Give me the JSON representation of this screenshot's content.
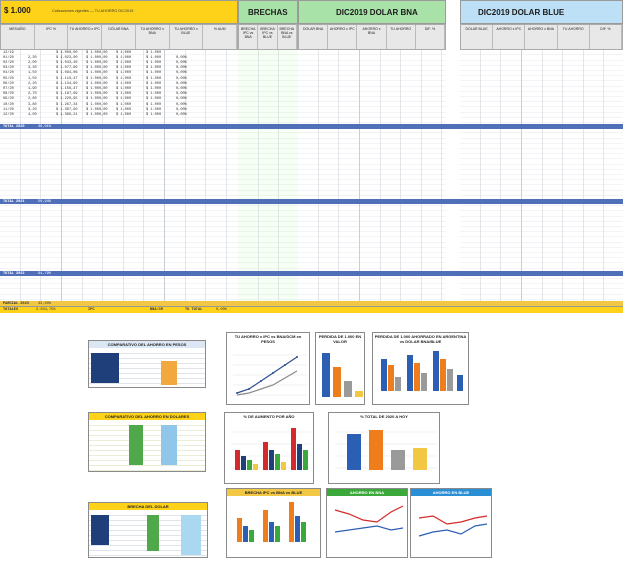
{
  "topbar": {
    "dollar_label": "$ 1.000",
    "note": "Cotizaciones vigentes — TU AHORRO DIC2019",
    "band_gold": "#ffd21a",
    "section_brechas": "BRECHAS",
    "section_dic_bna": "DIC2019 DOLAR BNA",
    "section_dic_blue": "DIC2019 DOLAR BLUE"
  },
  "headers": {
    "main": [
      "MES/AÑO",
      "IPC %",
      "TU AHORRO x IPC",
      "DÓLAR BNA",
      "TU AHORRO x BNA",
      "TU AHORRO x BLUE",
      "% AUM"
    ],
    "brechas": [
      "BRECHA IPC vs BNA",
      "BRECHA IPC vs BLUE",
      "BRECHA BNA vs BLUE"
    ],
    "bna": [
      "DOLAR BNA",
      "AHORRO x IPC",
      "AHORRO x BNA",
      "TU AHORRO",
      "DIF. %"
    ],
    "blue": [
      "DOLAR BLUE",
      "AHORRO x IPC",
      "AHORRO x BNA",
      "TU AHORRO",
      "DIF. %"
    ]
  },
  "rows": [
    {
      "a": "12/19",
      "b": "",
      "c": "$ 1.000,00",
      "d": "$ 1.000,00",
      "e": "$ 1.000",
      "f": "$ 1.000",
      "g": ""
    },
    {
      "a": "01/20",
      "b": "2,30",
      "c": "$ 1.023,00",
      "d": "$ 1.000,00",
      "e": "$ 1.000",
      "f": "$ 1.000",
      "g": "0,00%"
    },
    {
      "a": "02/20",
      "b": "2,00",
      "c": "$ 1.043,46",
      "d": "$ 1.000,00",
      "e": "$ 1.000",
      "f": "$ 1.000",
      "g": "0,00%"
    },
    {
      "a": "03/20",
      "b": "3,30",
      "c": "$ 1.077,89",
      "d": "$ 1.000,00",
      "e": "$ 1.000",
      "f": "$ 1.000",
      "g": "0,00%"
    },
    {
      "a": "04/20",
      "b": "1,50",
      "c": "$ 1.094,06",
      "d": "$ 1.000,00",
      "e": "$ 1.000",
      "f": "$ 1.000",
      "g": "0,00%"
    },
    {
      "a": "05/20",
      "b": "1,50",
      "c": "$ 1.110,47",
      "d": "$ 1.000,00",
      "e": "$ 1.000",
      "f": "$ 1.000",
      "g": "0,00%"
    },
    {
      "a": "06/20",
      "b": "2,20",
      "c": "$ 1.134,90",
      "d": "$ 1.000,00",
      "e": "$ 1.000",
      "f": "$ 1.000",
      "g": "0,00%"
    },
    {
      "a": "07/20",
      "b": "1,90",
      "c": "$ 1.156,47",
      "d": "$ 1.000,00",
      "e": "$ 1.000",
      "f": "$ 1.000",
      "g": "0,00%"
    },
    {
      "a": "08/20",
      "b": "2,70",
      "c": "$ 1.187,69",
      "d": "$ 1.000,00",
      "e": "$ 1.000",
      "f": "$ 1.000",
      "g": "0,00%"
    },
    {
      "a": "09/20",
      "b": "2,80",
      "c": "$ 1.220,95",
      "d": "$ 1.000,00",
      "e": "$ 1.000",
      "f": "$ 1.000",
      "g": "0,00%"
    },
    {
      "a": "10/20",
      "b": "3,80",
      "c": "$ 1.267,34",
      "d": "$ 1.000,00",
      "e": "$ 1.000",
      "f": "$ 1.000",
      "g": "0,00%"
    },
    {
      "a": "11/20",
      "b": "3,20",
      "c": "$ 1.307,90",
      "d": "$ 1.000,00",
      "e": "$ 1.000",
      "f": "$ 1.000",
      "g": "0,00%"
    },
    {
      "a": "12/20",
      "b": "4,00",
      "c": "$ 1.360,21",
      "d": "$ 1.000,00",
      "e": "$ 1.000",
      "f": "$ 1.000",
      "g": "0,00%"
    }
  ],
  "totals": [
    {
      "label": "TOTAL 2020",
      "value": "36,01%",
      "color": "#4f6fb8"
    },
    {
      "label": "TOTAL 2021",
      "value": "50,94%",
      "color": "#4f6fb8"
    },
    {
      "label": "TOTAL 2022",
      "value": "94,79%",
      "color": "#4f6fb8"
    },
    {
      "label": "PARCIAL 2023",
      "value": "33,50%",
      "color": "#4f6fb8"
    }
  ],
  "footer": {
    "total_label": "TOTALES",
    "total_ipc": "3.034,75%",
    "ipc_word": "IPC",
    "bna_word": "BNA/CM",
    "tu_total": "TU TOTAL",
    "tu_total_val": "0,00%"
  },
  "side_panel": {
    "title": "DIC2019 DOLAR BLUE",
    "extra_cols": [
      "DIF. %",
      "VS. IPC"
    ]
  },
  "charts": {
    "left_table_title": "COMPARATIVO DEL AHORRO EN PESOS",
    "ipc_vs_bna_title": "TU AHORRO x IPC vs BNA/DCM en PESOS",
    "pesos_title": "PERDIDA DE 1.000 EN VALOR",
    "gaps_title": "PERDIDA DE 1.000 AHORRADO EN ARGENTINA vs DOLAR BNA/BLUE",
    "mid_table_title": "COMPARATIVO DEL AHORRO EN DOLARES",
    "annual_title": "% DE AUMENTO POR AÑO",
    "cumulative_title": "% TOTAL DE 2020 A HOY",
    "bottom_table_title": "BRECHA DEL DOLAR",
    "bottom_bar_title": "BRECHA IPC vs BNA vs BLUE",
    "ipc_bna_line_title": "AHORRO EN BNA",
    "blue_line_title": "AHORRO EN BLUE",
    "cumulative_bars": [
      "IPC",
      "BNA",
      "BLUE",
      "TU AHORRO"
    ]
  }
}
